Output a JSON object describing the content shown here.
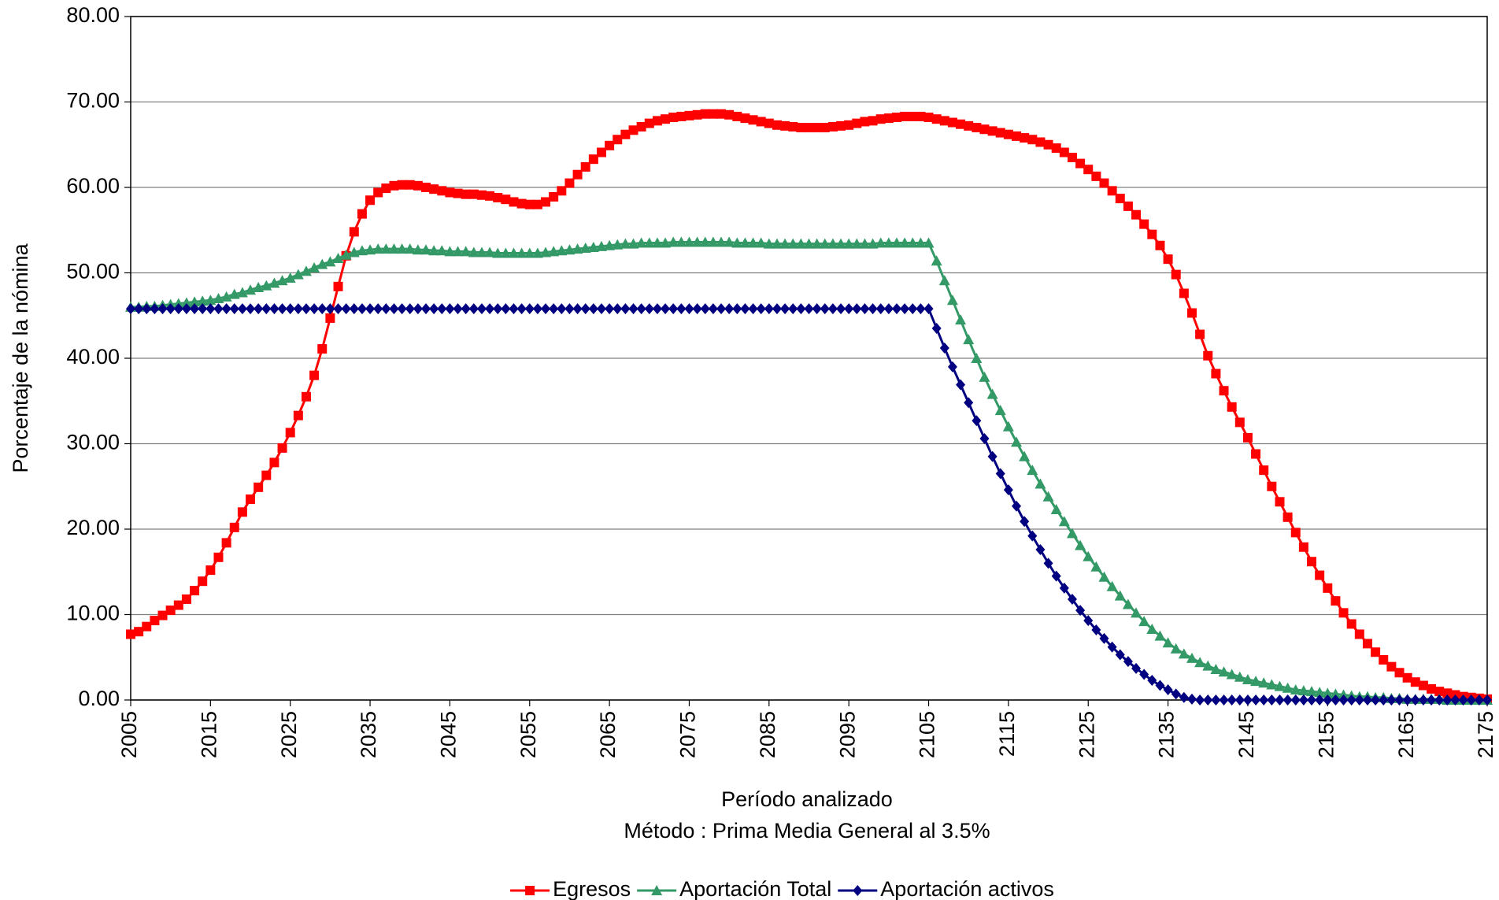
{
  "chart_data": {
    "type": "line",
    "x_label": "Período analizado",
    "subtitle": "Método : Prima Media General al 3.5%",
    "y_label": "Porcentaje de la nómina",
    "xlim": [
      2005,
      2175
    ],
    "xticks": [
      2005,
      2015,
      2025,
      2035,
      2045,
      2055,
      2065,
      2075,
      2085,
      2095,
      2105,
      2115,
      2125,
      2135,
      2145,
      2155,
      2165,
      2175
    ],
    "ylim": [
      0,
      80
    ],
    "yticks": [
      {
        "value": 0,
        "label": "0.00"
      },
      {
        "value": 10,
        "label": "10.00"
      },
      {
        "value": 20,
        "label": "20.00"
      },
      {
        "value": 30,
        "label": "30.00"
      },
      {
        "value": 40,
        "label": "40.00"
      },
      {
        "value": 50,
        "label": "50.00"
      },
      {
        "value": 60,
        "label": "60.00"
      },
      {
        "value": 70,
        "label": "70.00"
      },
      {
        "value": 80,
        "label": "80.00"
      }
    ],
    "grid": true,
    "legend": "bottom",
    "x": [
      2005,
      2006,
      2007,
      2008,
      2009,
      2010,
      2011,
      2012,
      2013,
      2014,
      2015,
      2016,
      2017,
      2018,
      2019,
      2020,
      2021,
      2022,
      2023,
      2024,
      2025,
      2026,
      2027,
      2028,
      2029,
      2030,
      2031,
      2032,
      2033,
      2034,
      2035,
      2036,
      2037,
      2038,
      2039,
      2040,
      2041,
      2042,
      2043,
      2044,
      2045,
      2046,
      2047,
      2048,
      2049,
      2050,
      2051,
      2052,
      2053,
      2054,
      2055,
      2056,
      2057,
      2058,
      2059,
      2060,
      2061,
      2062,
      2063,
      2064,
      2065,
      2066,
      2067,
      2068,
      2069,
      2070,
      2071,
      2072,
      2073,
      2074,
      2075,
      2076,
      2077,
      2078,
      2079,
      2080,
      2081,
      2082,
      2083,
      2084,
      2085,
      2086,
      2087,
      2088,
      2089,
      2090,
      2091,
      2092,
      2093,
      2094,
      2095,
      2096,
      2097,
      2098,
      2099,
      2100,
      2101,
      2102,
      2103,
      2104,
      2105,
      2106,
      2107,
      2108,
      2109,
      2110,
      2111,
      2112,
      2113,
      2114,
      2115,
      2116,
      2117,
      2118,
      2119,
      2120,
      2121,
      2122,
      2123,
      2124,
      2125,
      2126,
      2127,
      2128,
      2129,
      2130,
      2131,
      2132,
      2133,
      2134,
      2135,
      2136,
      2137,
      2138,
      2139,
      2140,
      2141,
      2142,
      2143,
      2144,
      2145,
      2146,
      2147,
      2148,
      2149,
      2150,
      2151,
      2152,
      2153,
      2154,
      2155,
      2156,
      2157,
      2158,
      2159,
      2160,
      2161,
      2162,
      2163,
      2164,
      2165,
      2166,
      2167,
      2168,
      2169,
      2170,
      2171,
      2172,
      2173,
      2174,
      2175
    ],
    "series": [
      {
        "name": "Egresos",
        "color": "#ff0000",
        "marker": "square",
        "values": [
          7.7,
          8.0,
          8.6,
          9.3,
          9.9,
          10.5,
          11.1,
          11.8,
          12.8,
          13.9,
          15.2,
          16.7,
          18.4,
          20.2,
          22.0,
          23.5,
          24.9,
          26.3,
          27.8,
          29.5,
          31.3,
          33.3,
          35.5,
          38.0,
          41.1,
          44.7,
          48.4,
          52.0,
          54.8,
          56.9,
          58.5,
          59.4,
          59.9,
          60.2,
          60.3,
          60.3,
          60.2,
          60.0,
          59.8,
          59.6,
          59.4,
          59.3,
          59.2,
          59.2,
          59.1,
          59.0,
          58.8,
          58.6,
          58.3,
          58.1,
          58.0,
          58.0,
          58.3,
          58.9,
          59.6,
          60.5,
          61.5,
          62.4,
          63.3,
          64.1,
          64.9,
          65.6,
          66.2,
          66.7,
          67.1,
          67.5,
          67.8,
          68.0,
          68.2,
          68.3,
          68.4,
          68.5,
          68.6,
          68.6,
          68.6,
          68.5,
          68.3,
          68.1,
          67.9,
          67.7,
          67.5,
          67.3,
          67.2,
          67.1,
          67.0,
          67.0,
          67.0,
          67.0,
          67.1,
          67.2,
          67.3,
          67.5,
          67.7,
          67.8,
          68.0,
          68.1,
          68.2,
          68.3,
          68.3,
          68.3,
          68.2,
          68.0,
          67.8,
          67.6,
          67.4,
          67.2,
          67.0,
          66.8,
          66.6,
          66.4,
          66.2,
          66.0,
          65.8,
          65.6,
          65.3,
          65.0,
          64.6,
          64.1,
          63.5,
          62.8,
          62.1,
          61.3,
          60.5,
          59.6,
          58.7,
          57.8,
          56.8,
          55.7,
          54.5,
          53.2,
          51.6,
          49.8,
          47.6,
          45.3,
          42.8,
          40.3,
          38.2,
          36.2,
          34.3,
          32.5,
          30.7,
          28.8,
          26.9,
          25.0,
          23.2,
          21.4,
          19.6,
          17.9,
          16.2,
          14.6,
          13.1,
          11.6,
          10.2,
          8.9,
          7.7,
          6.6,
          5.6,
          4.7,
          3.9,
          3.2,
          2.6,
          2.1,
          1.7,
          1.3,
          1.0,
          0.8,
          0.6,
          0.4,
          0.3,
          0.2,
          0.1
        ]
      },
      {
        "name": "Aportación Total",
        "color": "#339966",
        "marker": "triangle",
        "values": [
          46.0,
          46.0,
          46.1,
          46.1,
          46.2,
          46.3,
          46.4,
          46.5,
          46.6,
          46.7,
          46.8,
          47.0,
          47.2,
          47.5,
          47.7,
          48.0,
          48.3,
          48.5,
          48.8,
          49.1,
          49.4,
          49.8,
          50.2,
          50.6,
          51.0,
          51.3,
          51.7,
          52.1,
          52.4,
          52.6,
          52.7,
          52.8,
          52.8,
          52.8,
          52.8,
          52.8,
          52.7,
          52.7,
          52.6,
          52.6,
          52.5,
          52.5,
          52.5,
          52.4,
          52.4,
          52.4,
          52.3,
          52.3,
          52.3,
          52.3,
          52.3,
          52.3,
          52.4,
          52.5,
          52.6,
          52.7,
          52.8,
          52.9,
          53.0,
          53.1,
          53.2,
          53.3,
          53.4,
          53.4,
          53.5,
          53.5,
          53.5,
          53.5,
          53.6,
          53.6,
          53.6,
          53.6,
          53.6,
          53.6,
          53.6,
          53.6,
          53.5,
          53.5,
          53.5,
          53.5,
          53.4,
          53.4,
          53.4,
          53.4,
          53.4,
          53.4,
          53.4,
          53.4,
          53.4,
          53.4,
          53.4,
          53.4,
          53.4,
          53.4,
          53.5,
          53.5,
          53.5,
          53.5,
          53.5,
          53.5,
          53.5,
          51.4,
          49.1,
          46.8,
          44.5,
          42.2,
          40.0,
          37.8,
          35.8,
          33.9,
          32.0,
          30.2,
          28.5,
          26.9,
          25.3,
          23.8,
          22.3,
          20.9,
          19.5,
          18.1,
          16.8,
          15.6,
          14.4,
          13.3,
          12.2,
          11.2,
          10.2,
          9.2,
          8.3,
          7.5,
          6.7,
          6.0,
          5.4,
          4.9,
          4.4,
          4.0,
          3.6,
          3.3,
          3.0,
          2.7,
          2.4,
          2.2,
          2.0,
          1.8,
          1.6,
          1.4,
          1.2,
          1.1,
          1.0,
          0.9,
          0.8,
          0.7,
          0.6,
          0.5,
          0.4,
          0.4,
          0.3,
          0.3,
          0.2,
          0.2,
          0.1,
          0.1,
          0.1,
          0.1,
          0.1,
          0.0,
          0.0,
          0.0,
          0.0,
          0.0,
          0.0
        ]
      },
      {
        "name": "Aportación activos",
        "color": "#000080",
        "marker": "diamond",
        "values": [
          45.8,
          45.8,
          45.8,
          45.8,
          45.8,
          45.8,
          45.8,
          45.8,
          45.8,
          45.8,
          45.8,
          45.8,
          45.8,
          45.8,
          45.8,
          45.8,
          45.8,
          45.8,
          45.8,
          45.8,
          45.8,
          45.8,
          45.8,
          45.8,
          45.8,
          45.8,
          45.8,
          45.8,
          45.8,
          45.8,
          45.8,
          45.8,
          45.8,
          45.8,
          45.8,
          45.8,
          45.8,
          45.8,
          45.8,
          45.8,
          45.8,
          45.8,
          45.8,
          45.8,
          45.8,
          45.8,
          45.8,
          45.8,
          45.8,
          45.8,
          45.8,
          45.8,
          45.8,
          45.8,
          45.8,
          45.8,
          45.8,
          45.8,
          45.8,
          45.8,
          45.8,
          45.8,
          45.8,
          45.8,
          45.8,
          45.8,
          45.8,
          45.8,
          45.8,
          45.8,
          45.8,
          45.8,
          45.8,
          45.8,
          45.8,
          45.8,
          45.8,
          45.8,
          45.8,
          45.8,
          45.8,
          45.8,
          45.8,
          45.8,
          45.8,
          45.8,
          45.8,
          45.8,
          45.8,
          45.8,
          45.8,
          45.8,
          45.8,
          45.8,
          45.8,
          45.8,
          45.8,
          45.8,
          45.8,
          45.8,
          45.8,
          43.5,
          41.2,
          39.0,
          36.9,
          34.8,
          32.7,
          30.6,
          28.5,
          26.5,
          24.6,
          22.7,
          20.9,
          19.2,
          17.6,
          16.0,
          14.5,
          13.1,
          11.8,
          10.5,
          9.3,
          8.2,
          7.2,
          6.2,
          5.3,
          4.5,
          3.7,
          3.0,
          2.3,
          1.7,
          1.2,
          0.7,
          0.3,
          0.1,
          0.0,
          0.0,
          0.0,
          0.0,
          0.0,
          0.0,
          0.0,
          0.0,
          0.0,
          0.0,
          0.0,
          0.0,
          0.0,
          0.0,
          0.0,
          0.0,
          0.0,
          0.0,
          0.0,
          0.0,
          0.0,
          0.0,
          0.0,
          0.0,
          0.0,
          0.0,
          0.0,
          0.0,
          0.0,
          0.0,
          0.0,
          0.0,
          0.0,
          0.0,
          0.0,
          0.0,
          0.0
        ]
      }
    ]
  }
}
